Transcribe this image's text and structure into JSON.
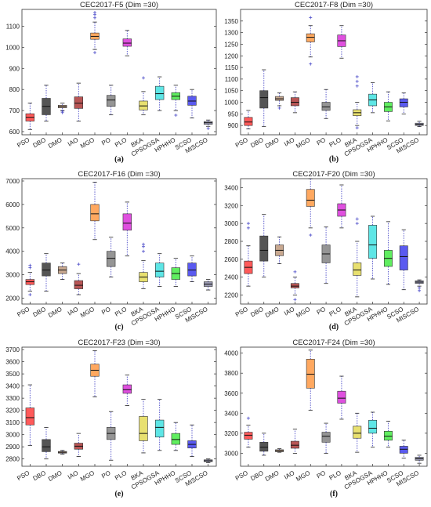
{
  "chart_data": [
    {
      "type": "boxplot",
      "title": "CEC2017-F5 (Dim =30)",
      "caption": "(a)",
      "ylim": [
        585,
        1180
      ],
      "yticks": [
        600,
        700,
        800,
        900,
        1000,
        1100
      ],
      "categories": [
        "PSO",
        "DBO",
        "DMO",
        "IAO",
        "MGO",
        "PO",
        "PLO",
        "BKA",
        "CPSOGSA",
        "HPHHO",
        "SCSO",
        "MISCSO"
      ],
      "boxes": [
        {
          "wmin": 610,
          "q1": 650,
          "median": 668,
          "q3": 685,
          "wmax": 735,
          "outliers": []
        },
        {
          "wmin": 650,
          "q1": 680,
          "median": 720,
          "q3": 758,
          "wmax": 820,
          "outliers": []
        },
        {
          "wmin": 700,
          "q1": 713,
          "median": 719,
          "q3": 725,
          "wmax": 735,
          "outliers": [
            690,
            697
          ]
        },
        {
          "wmin": 650,
          "q1": 710,
          "median": 735,
          "q3": 765,
          "wmax": 830,
          "outliers": []
        },
        {
          "wmin": 990,
          "q1": 1038,
          "median": 1052,
          "q3": 1068,
          "wmax": 1120,
          "outliers": [
            975,
            1140,
            1155,
            1165
          ]
        },
        {
          "wmin": 680,
          "q1": 720,
          "median": 750,
          "q3": 772,
          "wmax": 820,
          "outliers": []
        },
        {
          "wmin": 960,
          "q1": 1005,
          "median": 1020,
          "q3": 1040,
          "wmax": 1080,
          "outliers": []
        },
        {
          "wmin": 680,
          "q1": 703,
          "median": 722,
          "q3": 745,
          "wmax": 790,
          "outliers": [
            855
          ]
        },
        {
          "wmin": 700,
          "q1": 752,
          "median": 780,
          "q3": 815,
          "wmax": 860,
          "outliers": []
        },
        {
          "wmin": 700,
          "q1": 752,
          "median": 768,
          "q3": 785,
          "wmax": 820,
          "outliers": [
            678
          ]
        },
        {
          "wmin": 665,
          "q1": 725,
          "median": 745,
          "q3": 768,
          "wmax": 800,
          "outliers": []
        },
        {
          "wmin": 625,
          "q1": 635,
          "median": 642,
          "q3": 648,
          "wmax": 655,
          "outliers": [
            615
          ]
        }
      ]
    },
    {
      "type": "boxplot",
      "title": "CEC2017-F8 (Dim =30)",
      "caption": "(b)",
      "ylim": [
        860,
        1400
      ],
      "yticks": [
        900,
        950,
        1000,
        1050,
        1100,
        1150,
        1200,
        1250,
        1300,
        1350
      ],
      "categories": [
        "PSO",
        "DBO",
        "DMO",
        "IAO",
        "MGO",
        "PO",
        "PLO",
        "BKA",
        "CPSOGSA",
        "HPHHO",
        "SCSO",
        "MISCSO"
      ],
      "boxes": [
        {
          "wmin": 885,
          "q1": 900,
          "median": 915,
          "q3": 935,
          "wmax": 965,
          "outliers": []
        },
        {
          "wmin": 895,
          "q1": 975,
          "median": 1020,
          "q3": 1050,
          "wmax": 1140,
          "outliers": []
        },
        {
          "wmin": 985,
          "q1": 1008,
          "median": 1015,
          "q3": 1025,
          "wmax": 1040,
          "outliers": [
            975
          ]
        },
        {
          "wmin": 955,
          "q1": 985,
          "median": 1000,
          "q3": 1020,
          "wmax": 1045,
          "outliers": []
        },
        {
          "wmin": 1195,
          "q1": 1260,
          "median": 1280,
          "q3": 1295,
          "wmax": 1330,
          "outliers": [
            1165,
            1365
          ]
        },
        {
          "wmin": 930,
          "q1": 965,
          "median": 980,
          "q3": 1000,
          "wmax": 1055,
          "outliers": []
        },
        {
          "wmin": 1190,
          "q1": 1240,
          "median": 1265,
          "q3": 1290,
          "wmax": 1330,
          "outliers": []
        },
        {
          "wmin": 900,
          "q1": 942,
          "median": 955,
          "q3": 968,
          "wmax": 1000,
          "outliers": [
            890,
            1070,
            1090,
            1110
          ]
        },
        {
          "wmin": 955,
          "q1": 985,
          "median": 1010,
          "q3": 1035,
          "wmax": 1085,
          "outliers": []
        },
        {
          "wmin": 920,
          "q1": 960,
          "median": 980,
          "q3": 1000,
          "wmax": 1045,
          "outliers": []
        },
        {
          "wmin": 950,
          "q1": 980,
          "median": 1000,
          "q3": 1015,
          "wmax": 1040,
          "outliers": []
        },
        {
          "wmin": 895,
          "q1": 900,
          "median": 905,
          "q3": 910,
          "wmax": 918,
          "outliers": []
        }
      ]
    },
    {
      "type": "boxplot",
      "title": "CEC2017-F16 (Dim =30)",
      "caption": "(c)",
      "ylim": [
        1750,
        7100
      ],
      "yticks": [
        2000,
        3000,
        4000,
        5000,
        6000,
        7000
      ],
      "categories": [
        "PSO",
        "DBO",
        "DMO",
        "IAO",
        "MGO",
        "PO",
        "PLO",
        "BKA",
        "CPSOGSA",
        "HPHHO",
        "SCSO",
        "MISCSO"
      ],
      "boxes": [
        {
          "wmin": 2300,
          "q1": 2580,
          "median": 2700,
          "q3": 2800,
          "wmax": 3100,
          "outliers": [
            2150,
            3300,
            3400
          ]
        },
        {
          "wmin": 2300,
          "q1": 2950,
          "median": 3200,
          "q3": 3500,
          "wmax": 3900,
          "outliers": []
        },
        {
          "wmin": 2800,
          "q1": 3050,
          "median": 3200,
          "q3": 3350,
          "wmax": 3500,
          "outliers": []
        },
        {
          "wmin": 2150,
          "q1": 2400,
          "median": 2550,
          "q3": 2750,
          "wmax": 3050,
          "outliers": [
            3450
          ]
        },
        {
          "wmin": 4500,
          "q1": 5300,
          "median": 5600,
          "q3": 6000,
          "wmax": 6950,
          "outliers": []
        },
        {
          "wmin": 2900,
          "q1": 3350,
          "median": 3700,
          "q3": 4000,
          "wmax": 4600,
          "outliers": []
        },
        {
          "wmin": 3800,
          "q1": 4900,
          "median": 5200,
          "q3": 5600,
          "wmax": 6100,
          "outliers": []
        },
        {
          "wmin": 2400,
          "q1": 2700,
          "median": 2900,
          "q3": 3100,
          "wmax": 3600,
          "outliers": [
            4000,
            4200,
            4300
          ]
        },
        {
          "wmin": 2500,
          "q1": 2900,
          "median": 3150,
          "q3": 3500,
          "wmax": 3900,
          "outliers": []
        },
        {
          "wmin": 2500,
          "q1": 2800,
          "median": 3050,
          "q3": 3300,
          "wmax": 3700,
          "outliers": []
        },
        {
          "wmin": 2700,
          "q1": 2950,
          "median": 3200,
          "q3": 3500,
          "wmax": 3800,
          "outliers": []
        },
        {
          "wmin": 2350,
          "q1": 2500,
          "median": 2600,
          "q3": 2700,
          "wmax": 2800,
          "outliers": []
        }
      ]
    },
    {
      "type": "boxplot",
      "title": "CEC2017-F20 (Dim =30)",
      "caption": "(d)",
      "ylim": [
        2100,
        3500
      ],
      "yticks": [
        2200,
        2400,
        2600,
        2800,
        3000,
        3200,
        3400
      ],
      "categories": [
        "PSO",
        "DBO",
        "DMO",
        "IAO",
        "MGO",
        "PO",
        "PLO",
        "BKA",
        "CPSOGSA",
        "HPHHO",
        "SCSO",
        "MISCSO"
      ],
      "boxes": [
        {
          "wmin": 2300,
          "q1": 2440,
          "median": 2510,
          "q3": 2580,
          "wmax": 2750,
          "outliers": [
            2950,
            3000
          ]
        },
        {
          "wmin": 2400,
          "q1": 2580,
          "median": 2700,
          "q3": 2860,
          "wmax": 3100,
          "outliers": []
        },
        {
          "wmin": 2550,
          "q1": 2640,
          "median": 2700,
          "q3": 2760,
          "wmax": 2850,
          "outliers": []
        },
        {
          "wmin": 2200,
          "q1": 2280,
          "median": 2300,
          "q3": 2330,
          "wmax": 2400,
          "outliers": [
            2150,
            2460
          ]
        },
        {
          "wmin": 2950,
          "q1": 3190,
          "median": 3260,
          "q3": 3380,
          "wmax": 3500,
          "outliers": [
            2870
          ]
        },
        {
          "wmin": 2330,
          "q1": 2560,
          "median": 2660,
          "q3": 2760,
          "wmax": 2960,
          "outliers": []
        },
        {
          "wmin": 2950,
          "q1": 3080,
          "median": 3150,
          "q3": 3220,
          "wmax": 3430,
          "outliers": []
        },
        {
          "wmin": 2180,
          "q1": 2420,
          "median": 2480,
          "q3": 2560,
          "wmax": 2800,
          "outliers": [
            3000,
            3050
          ]
        },
        {
          "wmin": 2380,
          "q1": 2610,
          "median": 2760,
          "q3": 2980,
          "wmax": 3080,
          "outliers": []
        },
        {
          "wmin": 2320,
          "q1": 2520,
          "median": 2610,
          "q3": 2700,
          "wmax": 3020,
          "outliers": []
        },
        {
          "wmin": 2260,
          "q1": 2480,
          "median": 2630,
          "q3": 2750,
          "wmax": 2930,
          "outliers": []
        },
        {
          "wmin": 2300,
          "q1": 2330,
          "median": 2345,
          "q3": 2360,
          "wmax": 2370,
          "outliers": [
            2280,
            2250
          ]
        }
      ]
    },
    {
      "type": "boxplot",
      "title": "CEC2017-F23 (Dim =30)",
      "caption": "(e)",
      "ylim": [
        2740,
        3720
      ],
      "yticks": [
        2800,
        2900,
        3000,
        3100,
        3200,
        3300,
        3400,
        3500,
        3600,
        3700
      ],
      "categories": [
        "PSO",
        "DBO",
        "DMO",
        "IAO",
        "MGO",
        "PO",
        "PLO",
        "BKA",
        "CPSOGSA",
        "HPHHO",
        "SCSO",
        "MISCSO"
      ],
      "boxes": [
        {
          "wmin": 2910,
          "q1": 3080,
          "median": 3140,
          "q3": 3220,
          "wmax": 3410,
          "outliers": []
        },
        {
          "wmin": 2800,
          "q1": 2860,
          "median": 2900,
          "q3": 2960,
          "wmax": 3060,
          "outliers": []
        },
        {
          "wmin": 2840,
          "q1": 2848,
          "median": 2855,
          "q3": 2862,
          "wmax": 2870,
          "outliers": []
        },
        {
          "wmin": 2820,
          "q1": 2880,
          "median": 2905,
          "q3": 2930,
          "wmax": 3010,
          "outliers": []
        },
        {
          "wmin": 3310,
          "q1": 3480,
          "median": 3530,
          "q3": 3580,
          "wmax": 3690,
          "outliers": []
        },
        {
          "wmin": 2790,
          "q1": 2960,
          "median": 3010,
          "q3": 3060,
          "wmax": 3190,
          "outliers": []
        },
        {
          "wmin": 3240,
          "q1": 3340,
          "median": 3370,
          "q3": 3410,
          "wmax": 3490,
          "outliers": []
        },
        {
          "wmin": 2850,
          "q1": 2950,
          "median": 3010,
          "q3": 3150,
          "wmax": 3290,
          "outliers": []
        },
        {
          "wmin": 2870,
          "q1": 2980,
          "median": 3060,
          "q3": 3120,
          "wmax": 3290,
          "outliers": []
        },
        {
          "wmin": 2870,
          "q1": 2920,
          "median": 2960,
          "q3": 3010,
          "wmax": 3100,
          "outliers": []
        },
        {
          "wmin": 2820,
          "q1": 2890,
          "median": 2920,
          "q3": 2950,
          "wmax": 3080,
          "outliers": []
        },
        {
          "wmin": 2770,
          "q1": 2778,
          "median": 2785,
          "q3": 2793,
          "wmax": 2800,
          "outliers": []
        }
      ]
    },
    {
      "type": "boxplot",
      "title": "CEC2017-F24 (Dim =30)",
      "caption": "(f)",
      "ylim": [
        2870,
        4060
      ],
      "yticks": [
        3000,
        3200,
        3400,
        3600,
        3800,
        4000
      ],
      "categories": [
        "PSO",
        "DBO",
        "DMO",
        "IAO",
        "MGO",
        "PO",
        "PLO",
        "BKA",
        "CPSOGSA",
        "HPHHO",
        "SCSO",
        "MISCSO"
      ],
      "boxes": [
        {
          "wmin": 3060,
          "q1": 3140,
          "median": 3180,
          "q3": 3210,
          "wmax": 3280,
          "outliers": [
            3350
          ]
        },
        {
          "wmin": 2980,
          "q1": 3020,
          "median": 3060,
          "q3": 3110,
          "wmax": 3200,
          "outliers": []
        },
        {
          "wmin": 3010,
          "q1": 3015,
          "median": 3025,
          "q3": 3035,
          "wmax": 3045,
          "outliers": []
        },
        {
          "wmin": 3000,
          "q1": 3050,
          "median": 3080,
          "q3": 3120,
          "wmax": 3240,
          "outliers": []
        },
        {
          "wmin": 3430,
          "q1": 3650,
          "median": 3790,
          "q3": 3940,
          "wmax": 4030,
          "outliers": []
        },
        {
          "wmin": 3000,
          "q1": 3110,
          "median": 3170,
          "q3": 3210,
          "wmax": 3300,
          "outliers": []
        },
        {
          "wmin": 3340,
          "q1": 3500,
          "median": 3550,
          "q3": 3620,
          "wmax": 3770,
          "outliers": []
        },
        {
          "wmin": 3010,
          "q1": 3150,
          "median": 3200,
          "q3": 3270,
          "wmax": 3400,
          "outliers": []
        },
        {
          "wmin": 3060,
          "q1": 3200,
          "median": 3250,
          "q3": 3330,
          "wmax": 3410,
          "outliers": []
        },
        {
          "wmin": 3060,
          "q1": 3130,
          "median": 3170,
          "q3": 3220,
          "wmax": 3320,
          "outliers": []
        },
        {
          "wmin": 2950,
          "q1": 3000,
          "median": 3040,
          "q3": 3070,
          "wmax": 3130,
          "outliers": []
        },
        {
          "wmin": 2900,
          "q1": 2930,
          "median": 2945,
          "q3": 2960,
          "wmax": 2980,
          "outliers": []
        }
      ]
    }
  ],
  "colors": {
    "PSO": "#ff5a5a",
    "DBO": "#555555",
    "DMO": "#c8a890",
    "IAO": "#b85555",
    "MGO": "#ffa860",
    "PO": "#959595",
    "PLO": "#df50df",
    "BKA": "#e8e070",
    "CPSOGSA": "#5ee6e6",
    "HPHHO": "#60ee60",
    "SCSO": "#5a5af0",
    "MISCSO": "#9a9ab2"
  },
  "whisker_color": "#4a4ac8"
}
